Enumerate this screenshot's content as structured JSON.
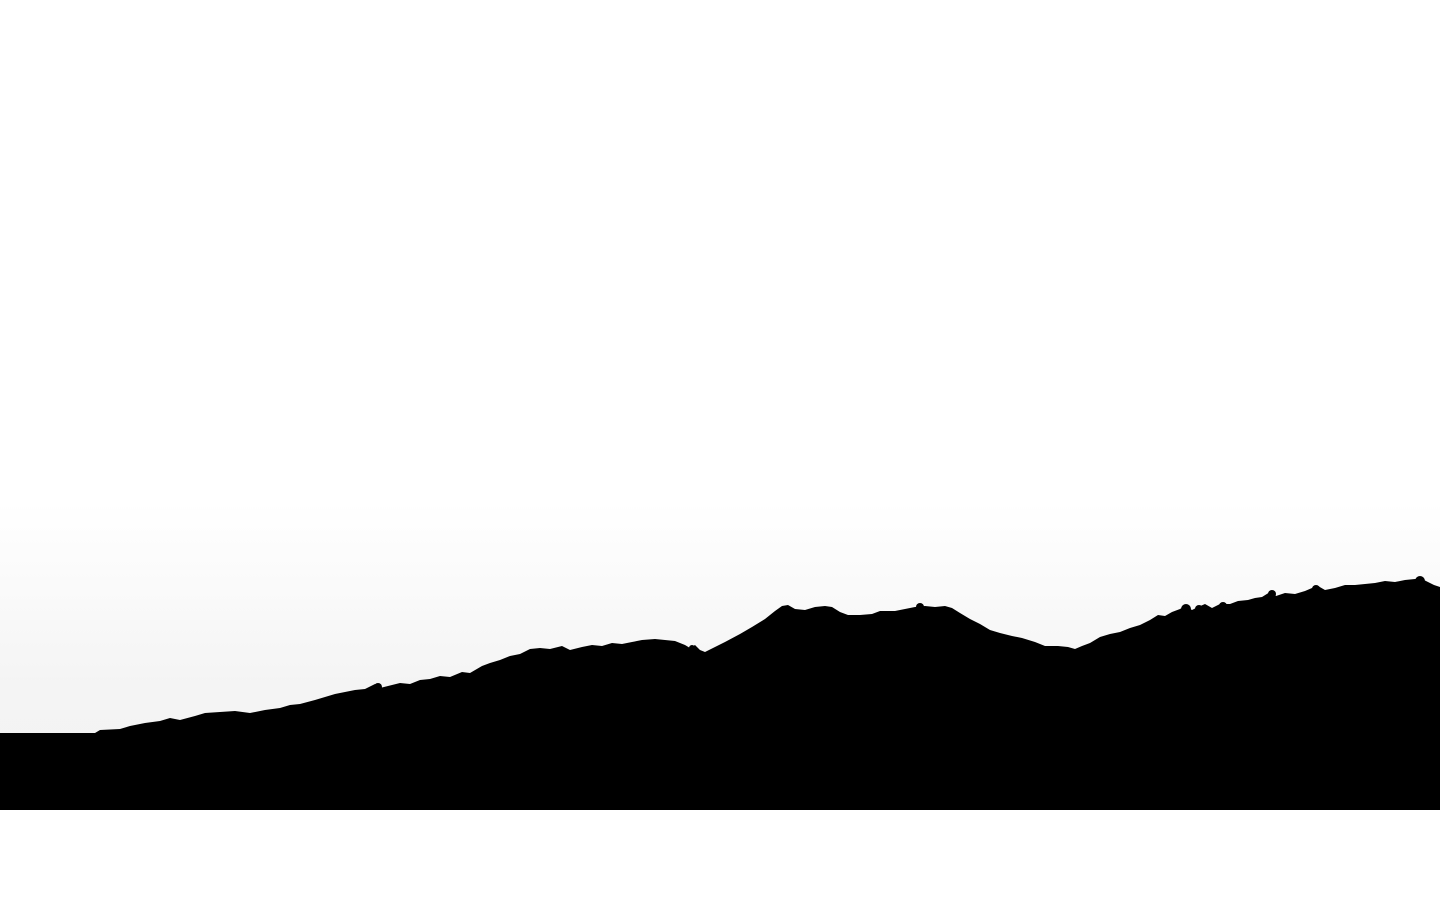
{
  "scene": {
    "sky_color": "#ffffff",
    "haze_color": "#f4f4f4",
    "silhouette_color": "#000000",
    "background_color": "#ffffff"
  }
}
